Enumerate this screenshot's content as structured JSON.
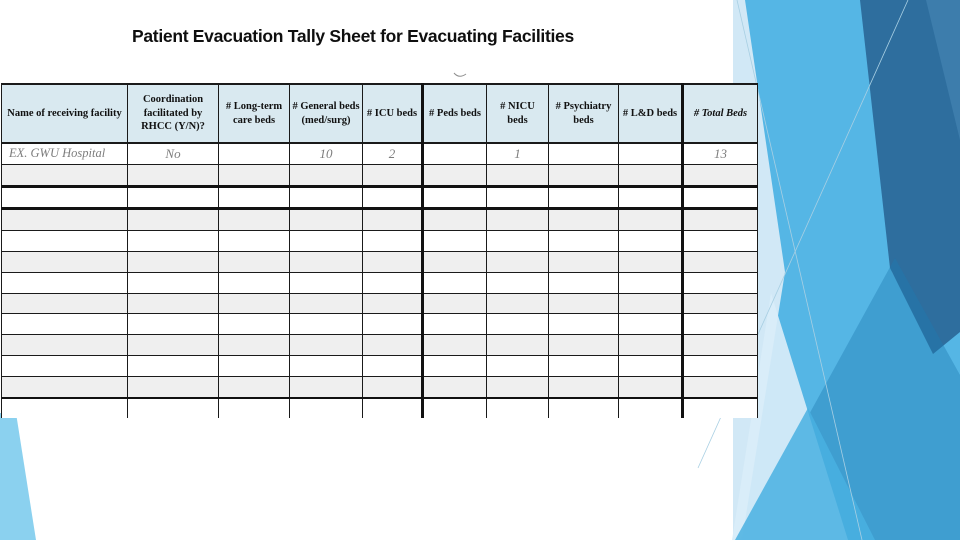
{
  "slide": {
    "title": "Patient Evacuation Tally Sheet for Evacuating Facilities"
  },
  "table": {
    "columns": [
      "Name of receiving facility",
      "Coordination facilitated by RHCC (Y/N)?",
      "# Long-term care beds",
      "# General beds (med/surg)",
      "# ICU beds",
      "# Peds beds",
      "# NICU beds",
      "# Psychiatry beds",
      "# L&D beds",
      "# Total Beds"
    ],
    "rows": [
      [
        "EX. GWU Hospital",
        "No",
        "",
        "10",
        "2",
        "",
        "1",
        "",
        "",
        "13"
      ],
      [
        "",
        "",
        "",
        "",
        "",
        "",
        "",
        "",
        "",
        ""
      ],
      [
        "",
        "",
        "",
        "",
        "",
        "",
        "",
        "",
        "",
        ""
      ],
      [
        "",
        "",
        "",
        "",
        "",
        "",
        "",
        "",
        "",
        ""
      ],
      [
        "",
        "",
        "",
        "",
        "",
        "",
        "",
        "",
        "",
        ""
      ],
      [
        "",
        "",
        "",
        "",
        "",
        "",
        "",
        "",
        "",
        ""
      ],
      [
        "",
        "",
        "",
        "",
        "",
        "",
        "",
        "",
        "",
        ""
      ],
      [
        "",
        "",
        "",
        "",
        "",
        "",
        "",
        "",
        "",
        ""
      ],
      [
        "",
        "",
        "",
        "",
        "",
        "",
        "",
        "",
        "",
        ""
      ],
      [
        "",
        "",
        "",
        "",
        "",
        "",
        "",
        "",
        "",
        ""
      ],
      [
        "",
        "",
        "",
        "",
        "",
        "",
        "",
        "",
        "",
        ""
      ],
      [
        "",
        "",
        "",
        "",
        "",
        "",
        "",
        "",
        "",
        ""
      ],
      [
        "",
        "",
        "",
        "",
        "",
        "",
        "",
        "",
        "",
        ""
      ]
    ]
  },
  "colors": {
    "header_bg": "#d9e9f0",
    "stripe": "#efefef",
    "table_border": "#1a1a1a",
    "example_text": "#7d7d7d",
    "decor_bright_blue": "#55b6e5",
    "decor_dark_blue": "#2e6e9e",
    "decor_mid_blue": "#1f7ab2",
    "decor_pale_blue": "#d9edf8",
    "decor_sky_blue": "#8bd1ef"
  }
}
